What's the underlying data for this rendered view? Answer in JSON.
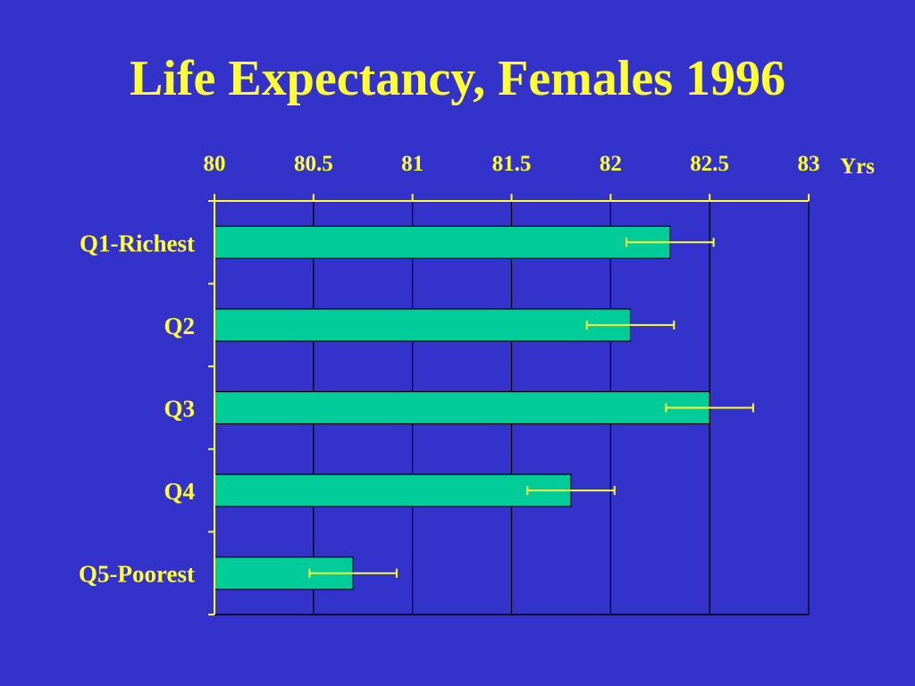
{
  "slide": {
    "title": "Life Expectancy, Females 1996",
    "background_color": "#3333cc",
    "title_color": "#ffff33"
  },
  "chart_data": {
    "type": "bar",
    "orientation": "horizontal",
    "title": "Life Expectancy, Females 1996",
    "xlabel": "Yrs",
    "ylabel": "",
    "xlim": [
      80,
      83
    ],
    "x_ticks": [
      "80",
      "80.5",
      "81",
      "81.5",
      "82",
      "82.5",
      "83"
    ],
    "x_axis_position": "top",
    "grid": "vertical",
    "categories": [
      "Q1-Richest",
      "Q2",
      "Q3",
      "Q4",
      "Q5-Poorest"
    ],
    "series": [
      {
        "values": [
          82.3,
          82.1,
          82.5,
          81.8,
          80.7
        ],
        "error_low": [
          82.08,
          81.88,
          82.28,
          81.58,
          80.48
        ],
        "error_high": [
          82.52,
          82.32,
          82.72,
          82.02,
          80.92
        ]
      }
    ],
    "colors": {
      "bar": "#00cc99",
      "error_bar": "#ffff33",
      "axis": "#ffff33",
      "grid": "#000000",
      "tick_label": "#ffff33"
    }
  }
}
